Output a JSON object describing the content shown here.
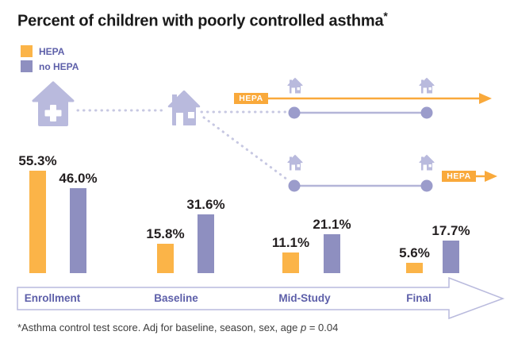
{
  "title": {
    "text": "Percent of children with poorly controlled asthma",
    "asterisk": "*"
  },
  "legend": {
    "items": [
      {
        "label": "HEPA",
        "color": "#FBB448"
      },
      {
        "label": "no HEPA",
        "color": "#8E8FC0"
      }
    ]
  },
  "journey": {
    "hepa_badge_top": "HEPA",
    "hepa_badge_bottom": "HEPA"
  },
  "colors": {
    "hepa_orange": "#FBB448",
    "no_hepa_purple": "#8E8FC0",
    "arrow_orange": "#F9A93B",
    "icon_purple": "#B9BADD",
    "dot_purple": "#9B9CCB",
    "label_purple": "#5D5FA9"
  },
  "chart_data": {
    "type": "bar",
    "title": "Percent of children with poorly controlled asthma*",
    "categories": [
      "Enrollment",
      "Baseline",
      "Mid-Study",
      "Final"
    ],
    "series": [
      {
        "name": "HEPA",
        "color": "#FBB448",
        "values": [
          55.3,
          15.8,
          11.1,
          5.6
        ]
      },
      {
        "name": "no HEPA",
        "color": "#8E8FC0",
        "values": [
          46.0,
          31.6,
          21.1,
          17.7
        ]
      }
    ],
    "value_label_format": "percent_one_decimal",
    "xlabel": "",
    "ylabel": "",
    "ylim": [
      0,
      60
    ],
    "grid": false,
    "legend_position": "top-left",
    "annotations": [
      "HEPA intervention arrow starts at Baseline for top group",
      "HEPA intervention arrow starts at Final for bottom group"
    ]
  },
  "footnote": {
    "prefix": "*Asthma control test score. Adj for baseline, season, sex, age ",
    "stat_symbol": "p",
    "stat_value": " = 0.04"
  }
}
